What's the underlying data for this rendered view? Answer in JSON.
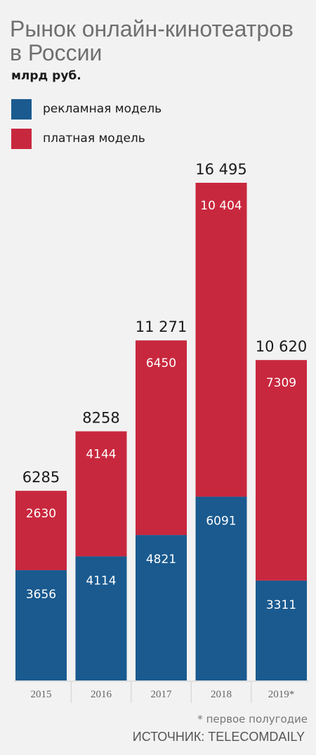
{
  "header": {
    "title": "Рынок онлайн-кинотеатров в России",
    "unit": "млрд руб."
  },
  "legend": [
    {
      "label": "рекламная модель",
      "color": "#1a5a8f"
    },
    {
      "label": "платная модель",
      "color": "#c8283e"
    }
  ],
  "chart_data": {
    "type": "bar",
    "stacked": true,
    "categories": [
      "2015",
      "2016",
      "2017",
      "2018",
      "2019*"
    ],
    "series": [
      {
        "name": "рекламная модель",
        "color": "#1a5a8f",
        "values": [
          3656,
          4114,
          4821,
          6091,
          3311
        ],
        "labels": [
          "3656",
          "4114",
          "4821",
          "6091",
          "3311"
        ]
      },
      {
        "name": "платная модель",
        "color": "#c8283e",
        "values": [
          2630,
          4144,
          6450,
          10404,
          7309
        ],
        "labels": [
          "2630",
          "4144",
          "6450",
          "10 404",
          "7309"
        ]
      }
    ],
    "totals": [
      "6285",
      "8258",
      "11 271",
      "16 495",
      "10 620"
    ],
    "total_values": [
      6285,
      8258,
      11271,
      16495,
      10620
    ],
    "ylim": [
      0,
      16495
    ],
    "grid": false
  },
  "footer": {
    "footnote": "* первое полугодие",
    "source": "ИСТОЧНИК: TELECOMDAILY"
  }
}
